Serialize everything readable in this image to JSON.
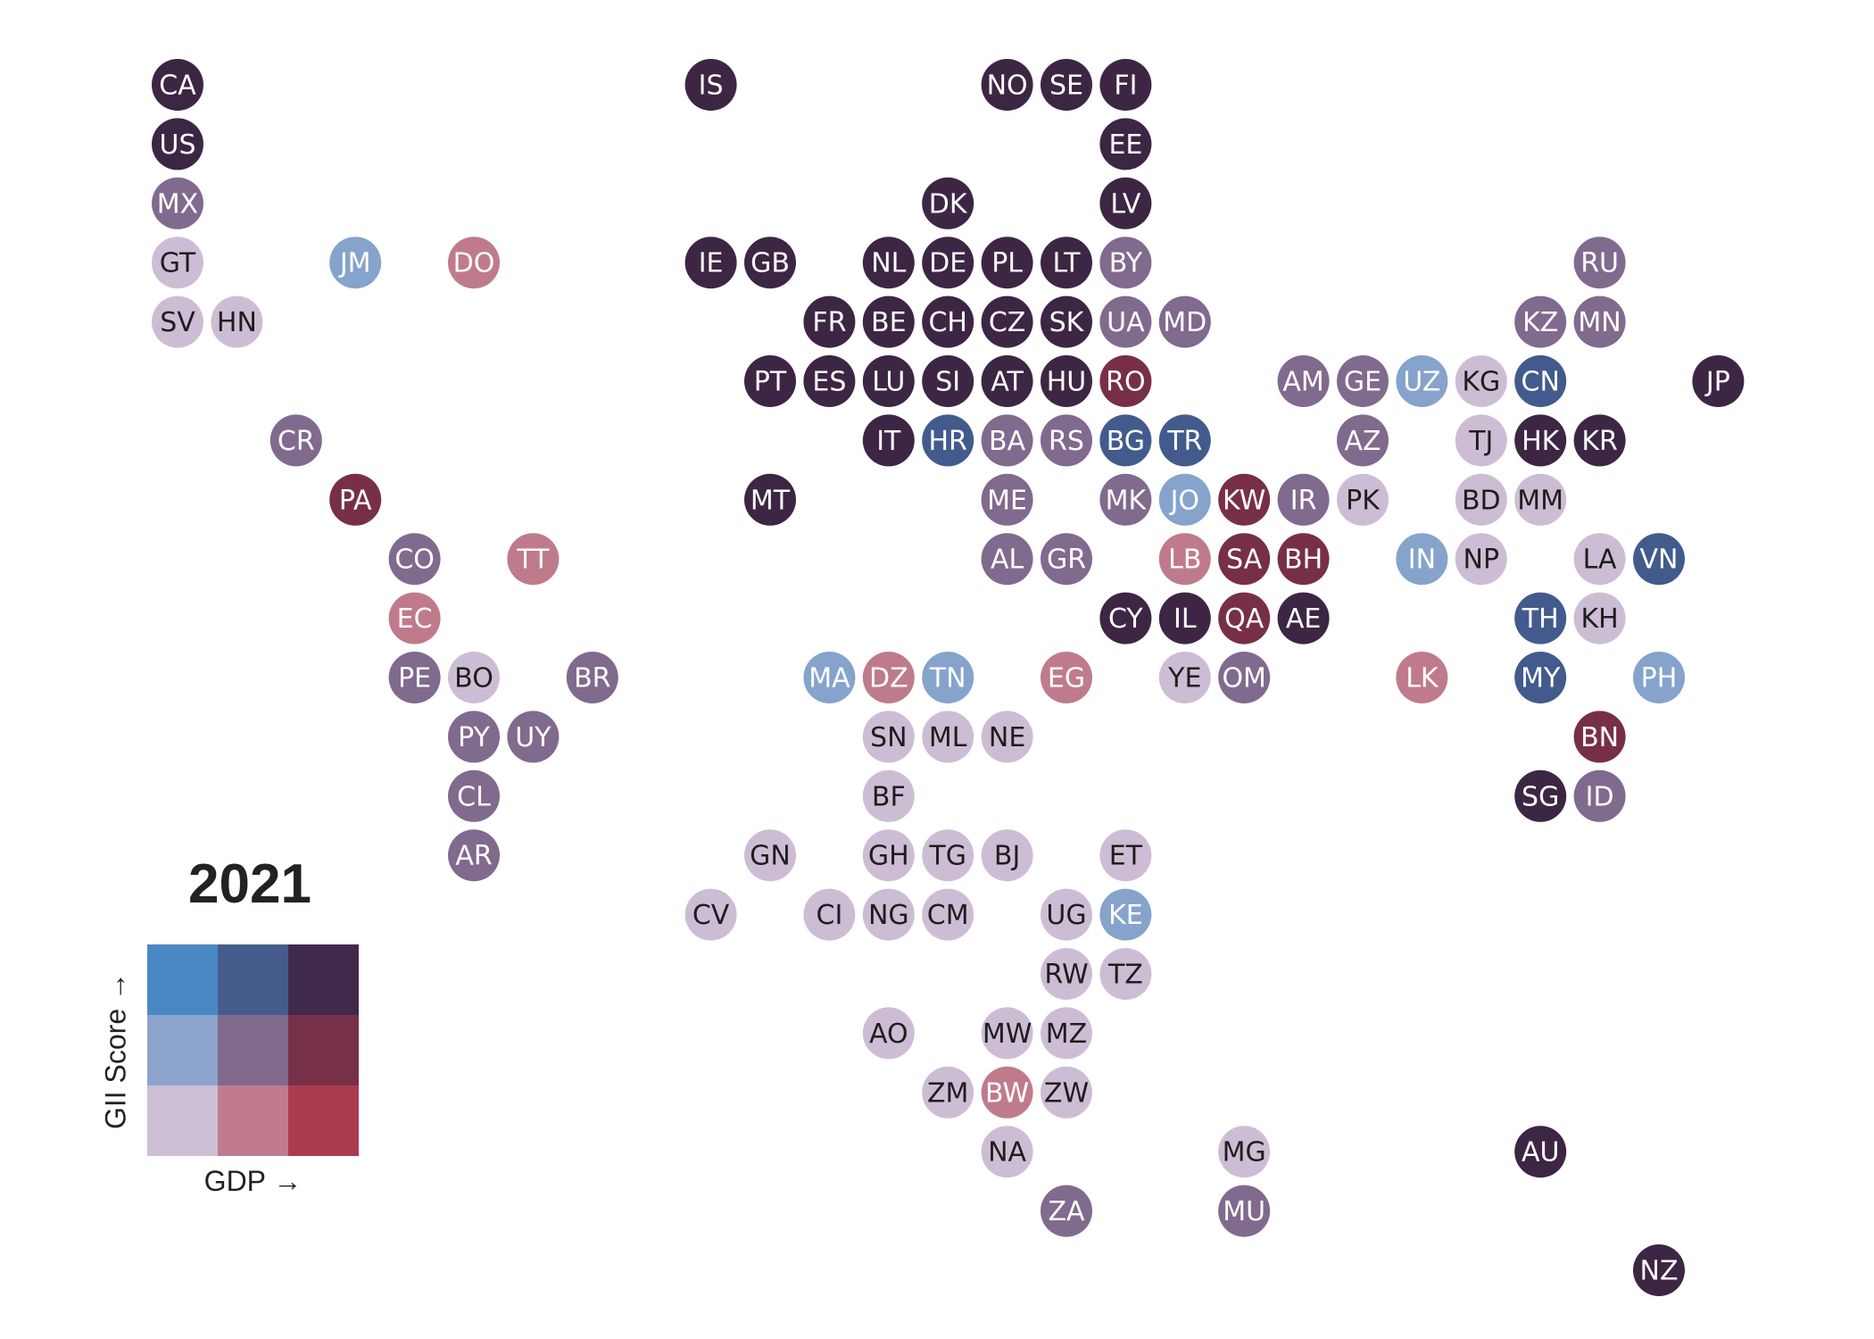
{
  "title": "2021",
  "legend": {
    "x_label": "GDP →",
    "y_label": "GII Score →",
    "colors": [
      [
        "#4a88c4",
        "#455c8a",
        "#3f2a4b"
      ],
      [
        "#8ca4cc",
        "#826a8c",
        "#763149"
      ],
      [
        "#cdbfd4",
        "#c07c8d",
        "#ad3b4f"
      ]
    ]
  },
  "palette": {
    "darkpurple": "#3c2644",
    "midpurple": "#806a8d",
    "lightpurple": "#cdbdd4",
    "lightblue": "#86a3cc",
    "darkblue": "#425b8c",
    "pink": "#bf7b8c",
    "darkred": "#772f48"
  },
  "countries": [
    {
      "code": "CA",
      "col": 0,
      "row": 0,
      "color": "darkpurple"
    },
    {
      "code": "IS",
      "col": 9,
      "row": 0,
      "color": "darkpurple"
    },
    {
      "code": "NO",
      "col": 14,
      "row": 0,
      "color": "darkpurple"
    },
    {
      "code": "SE",
      "col": 15,
      "row": 0,
      "color": "darkpurple"
    },
    {
      "code": "FI",
      "col": 16,
      "row": 0,
      "color": "darkpurple"
    },
    {
      "code": "US",
      "col": 0,
      "row": 1,
      "color": "darkpurple"
    },
    {
      "code": "EE",
      "col": 16,
      "row": 1,
      "color": "darkpurple"
    },
    {
      "code": "MX",
      "col": 0,
      "row": 2,
      "color": "midpurple"
    },
    {
      "code": "DK",
      "col": 13,
      "row": 2,
      "color": "darkpurple"
    },
    {
      "code": "LV",
      "col": 16,
      "row": 2,
      "color": "darkpurple"
    },
    {
      "code": "GT",
      "col": 0,
      "row": 3,
      "color": "lightpurple"
    },
    {
      "code": "JM",
      "col": 3,
      "row": 3,
      "color": "lightblue"
    },
    {
      "code": "DO",
      "col": 5,
      "row": 3,
      "color": "pink"
    },
    {
      "code": "IE",
      "col": 9,
      "row": 3,
      "color": "darkpurple"
    },
    {
      "code": "GB",
      "col": 10,
      "row": 3,
      "color": "darkpurple"
    },
    {
      "code": "NL",
      "col": 12,
      "row": 3,
      "color": "darkpurple"
    },
    {
      "code": "DE",
      "col": 13,
      "row": 3,
      "color": "darkpurple"
    },
    {
      "code": "PL",
      "col": 14,
      "row": 3,
      "color": "darkpurple"
    },
    {
      "code": "LT",
      "col": 15,
      "row": 3,
      "color": "darkpurple"
    },
    {
      "code": "BY",
      "col": 16,
      "row": 3,
      "color": "midpurple"
    },
    {
      "code": "RU",
      "col": 24,
      "row": 3,
      "color": "midpurple"
    },
    {
      "code": "SV",
      "col": 0,
      "row": 4,
      "color": "lightpurple"
    },
    {
      "code": "HN",
      "col": 1,
      "row": 4,
      "color": "lightpurple"
    },
    {
      "code": "FR",
      "col": 11,
      "row": 4,
      "color": "darkpurple"
    },
    {
      "code": "BE",
      "col": 12,
      "row": 4,
      "color": "darkpurple"
    },
    {
      "code": "CH",
      "col": 13,
      "row": 4,
      "color": "darkpurple"
    },
    {
      "code": "CZ",
      "col": 14,
      "row": 4,
      "color": "darkpurple"
    },
    {
      "code": "SK",
      "col": 15,
      "row": 4,
      "color": "darkpurple"
    },
    {
      "code": "UA",
      "col": 16,
      "row": 4,
      "color": "midpurple"
    },
    {
      "code": "MD",
      "col": 17,
      "row": 4,
      "color": "midpurple"
    },
    {
      "code": "KZ",
      "col": 23,
      "row": 4,
      "color": "midpurple"
    },
    {
      "code": "MN",
      "col": 24,
      "row": 4,
      "color": "midpurple"
    },
    {
      "code": "PT",
      "col": 10,
      "row": 5,
      "color": "darkpurple"
    },
    {
      "code": "ES",
      "col": 11,
      "row": 5,
      "color": "darkpurple"
    },
    {
      "code": "LU",
      "col": 12,
      "row": 5,
      "color": "darkpurple"
    },
    {
      "code": "SI",
      "col": 13,
      "row": 5,
      "color": "darkpurple"
    },
    {
      "code": "AT",
      "col": 14,
      "row": 5,
      "color": "darkpurple"
    },
    {
      "code": "HU",
      "col": 15,
      "row": 5,
      "color": "darkpurple"
    },
    {
      "code": "RO",
      "col": 16,
      "row": 5,
      "color": "darkred"
    },
    {
      "code": "AM",
      "col": 19,
      "row": 5,
      "color": "midpurple"
    },
    {
      "code": "GE",
      "col": 20,
      "row": 5,
      "color": "midpurple"
    },
    {
      "code": "UZ",
      "col": 21,
      "row": 5,
      "color": "lightblue"
    },
    {
      "code": "KG",
      "col": 22,
      "row": 5,
      "color": "lightpurple"
    },
    {
      "code": "CN",
      "col": 23,
      "row": 5,
      "color": "darkblue"
    },
    {
      "code": "JP",
      "col": 26,
      "row": 5,
      "color": "darkpurple"
    },
    {
      "code": "CR",
      "col": 2,
      "row": 6,
      "color": "midpurple"
    },
    {
      "code": "IT",
      "col": 12,
      "row": 6,
      "color": "darkpurple"
    },
    {
      "code": "HR",
      "col": 13,
      "row": 6,
      "color": "darkblue"
    },
    {
      "code": "BA",
      "col": 14,
      "row": 6,
      "color": "midpurple"
    },
    {
      "code": "RS",
      "col": 15,
      "row": 6,
      "color": "midpurple"
    },
    {
      "code": "BG",
      "col": 16,
      "row": 6,
      "color": "darkblue"
    },
    {
      "code": "TR",
      "col": 17,
      "row": 6,
      "color": "darkblue"
    },
    {
      "code": "AZ",
      "col": 20,
      "row": 6,
      "color": "midpurple"
    },
    {
      "code": "TJ",
      "col": 22,
      "row": 6,
      "color": "lightpurple"
    },
    {
      "code": "HK",
      "col": 23,
      "row": 6,
      "color": "darkpurple"
    },
    {
      "code": "KR",
      "col": 24,
      "row": 6,
      "color": "darkpurple"
    },
    {
      "code": "PA",
      "col": 3,
      "row": 7,
      "color": "darkred"
    },
    {
      "code": "MT",
      "col": 10,
      "row": 7,
      "color": "darkpurple"
    },
    {
      "code": "ME",
      "col": 14,
      "row": 7,
      "color": "midpurple"
    },
    {
      "code": "MK",
      "col": 16,
      "row": 7,
      "color": "midpurple"
    },
    {
      "code": "JO",
      "col": 17,
      "row": 7,
      "color": "lightblue"
    },
    {
      "code": "KW",
      "col": 18,
      "row": 7,
      "color": "darkred"
    },
    {
      "code": "IR",
      "col": 19,
      "row": 7,
      "color": "midpurple"
    },
    {
      "code": "PK",
      "col": 20,
      "row": 7,
      "color": "lightpurple"
    },
    {
      "code": "BD",
      "col": 22,
      "row": 7,
      "color": "lightpurple"
    },
    {
      "code": "MM",
      "col": 23,
      "row": 7,
      "color": "lightpurple"
    },
    {
      "code": "CO",
      "col": 4,
      "row": 8,
      "color": "midpurple"
    },
    {
      "code": "TT",
      "col": 6,
      "row": 8,
      "color": "pink"
    },
    {
      "code": "AL",
      "col": 14,
      "row": 8,
      "color": "midpurple"
    },
    {
      "code": "GR",
      "col": 15,
      "row": 8,
      "color": "midpurple"
    },
    {
      "code": "LB",
      "col": 17,
      "row": 8,
      "color": "pink"
    },
    {
      "code": "SA",
      "col": 18,
      "row": 8,
      "color": "darkred"
    },
    {
      "code": "BH",
      "col": 19,
      "row": 8,
      "color": "darkred"
    },
    {
      "code": "IN",
      "col": 21,
      "row": 8,
      "color": "lightblue"
    },
    {
      "code": "NP",
      "col": 22,
      "row": 8,
      "color": "lightpurple"
    },
    {
      "code": "LA",
      "col": 24,
      "row": 8,
      "color": "lightpurple"
    },
    {
      "code": "VN",
      "col": 25,
      "row": 8,
      "color": "darkblue"
    },
    {
      "code": "EC",
      "col": 4,
      "row": 9,
      "color": "pink"
    },
    {
      "code": "CY",
      "col": 16,
      "row": 9,
      "color": "darkpurple"
    },
    {
      "code": "IL",
      "col": 17,
      "row": 9,
      "color": "darkpurple"
    },
    {
      "code": "QA",
      "col": 18,
      "row": 9,
      "color": "darkred"
    },
    {
      "code": "AE",
      "col": 19,
      "row": 9,
      "color": "darkpurple"
    },
    {
      "code": "TH",
      "col": 23,
      "row": 9,
      "color": "darkblue"
    },
    {
      "code": "KH",
      "col": 24,
      "row": 9,
      "color": "lightpurple"
    },
    {
      "code": "PE",
      "col": 4,
      "row": 10,
      "color": "midpurple"
    },
    {
      "code": "BO",
      "col": 5,
      "row": 10,
      "color": "lightpurple"
    },
    {
      "code": "BR",
      "col": 7,
      "row": 10,
      "color": "midpurple"
    },
    {
      "code": "MA",
      "col": 11,
      "row": 10,
      "color": "lightblue"
    },
    {
      "code": "DZ",
      "col": 12,
      "row": 10,
      "color": "pink"
    },
    {
      "code": "TN",
      "col": 13,
      "row": 10,
      "color": "lightblue"
    },
    {
      "code": "EG",
      "col": 15,
      "row": 10,
      "color": "pink"
    },
    {
      "code": "YE",
      "col": 17,
      "row": 10,
      "color": "lightpurple"
    },
    {
      "code": "OM",
      "col": 18,
      "row": 10,
      "color": "midpurple"
    },
    {
      "code": "LK",
      "col": 21,
      "row": 10,
      "color": "pink"
    },
    {
      "code": "MY",
      "col": 23,
      "row": 10,
      "color": "darkblue"
    },
    {
      "code": "PH",
      "col": 25,
      "row": 10,
      "color": "lightblue"
    },
    {
      "code": "PY",
      "col": 5,
      "row": 11,
      "color": "midpurple"
    },
    {
      "code": "UY",
      "col": 6,
      "row": 11,
      "color": "midpurple"
    },
    {
      "code": "SN",
      "col": 12,
      "row": 11,
      "color": "lightpurple"
    },
    {
      "code": "ML",
      "col": 13,
      "row": 11,
      "color": "lightpurple"
    },
    {
      "code": "NE",
      "col": 14,
      "row": 11,
      "color": "lightpurple"
    },
    {
      "code": "BN",
      "col": 24,
      "row": 11,
      "color": "darkred"
    },
    {
      "code": "CL",
      "col": 5,
      "row": 12,
      "color": "midpurple"
    },
    {
      "code": "BF",
      "col": 12,
      "row": 12,
      "color": "lightpurple"
    },
    {
      "code": "SG",
      "col": 23,
      "row": 12,
      "color": "darkpurple"
    },
    {
      "code": "ID",
      "col": 24,
      "row": 12,
      "color": "midpurple"
    },
    {
      "code": "AR",
      "col": 5,
      "row": 13,
      "color": "midpurple"
    },
    {
      "code": "GN",
      "col": 10,
      "row": 13,
      "color": "lightpurple"
    },
    {
      "code": "GH",
      "col": 12,
      "row": 13,
      "color": "lightpurple"
    },
    {
      "code": "TG",
      "col": 13,
      "row": 13,
      "color": "lightpurple"
    },
    {
      "code": "BJ",
      "col": 14,
      "row": 13,
      "color": "lightpurple"
    },
    {
      "code": "ET",
      "col": 16,
      "row": 13,
      "color": "lightpurple"
    },
    {
      "code": "CV",
      "col": 9,
      "row": 14,
      "color": "lightpurple"
    },
    {
      "code": "CI",
      "col": 11,
      "row": 14,
      "color": "lightpurple"
    },
    {
      "code": "NG",
      "col": 12,
      "row": 14,
      "color": "lightpurple"
    },
    {
      "code": "CM",
      "col": 13,
      "row": 14,
      "color": "lightpurple"
    },
    {
      "code": "UG",
      "col": 15,
      "row": 14,
      "color": "lightpurple"
    },
    {
      "code": "KE",
      "col": 16,
      "row": 14,
      "color": "lightblue"
    },
    {
      "code": "RW",
      "col": 15,
      "row": 15,
      "color": "lightpurple"
    },
    {
      "code": "TZ",
      "col": 16,
      "row": 15,
      "color": "lightpurple"
    },
    {
      "code": "AO",
      "col": 12,
      "row": 16,
      "color": "lightpurple"
    },
    {
      "code": "MW",
      "col": 14,
      "row": 16,
      "color": "lightpurple"
    },
    {
      "code": "MZ",
      "col": 15,
      "row": 16,
      "color": "lightpurple"
    },
    {
      "code": "ZM",
      "col": 13,
      "row": 17,
      "color": "lightpurple"
    },
    {
      "code": "BW",
      "col": 14,
      "row": 17,
      "color": "pink"
    },
    {
      "code": "ZW",
      "col": 15,
      "row": 17,
      "color": "lightpurple"
    },
    {
      "code": "NA",
      "col": 14,
      "row": 18,
      "color": "lightpurple"
    },
    {
      "code": "MG",
      "col": 18,
      "row": 18,
      "color": "lightpurple"
    },
    {
      "code": "AU",
      "col": 23,
      "row": 18,
      "color": "darkpurple"
    },
    {
      "code": "ZA",
      "col": 15,
      "row": 19,
      "color": "midpurple"
    },
    {
      "code": "MU",
      "col": 18,
      "row": 19,
      "color": "midpurple"
    },
    {
      "code": "NZ",
      "col": 25,
      "row": 20,
      "color": "darkpurple"
    }
  ]
}
